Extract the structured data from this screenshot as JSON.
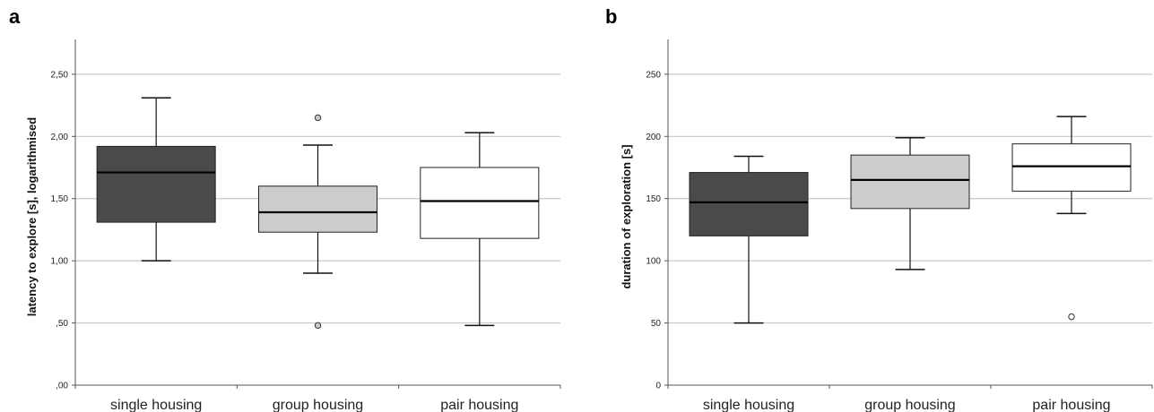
{
  "panels": {
    "a": {
      "letter": "a"
    },
    "b": {
      "letter": "b"
    }
  },
  "chart_data": [
    {
      "type": "boxplot",
      "panel": "a",
      "xlabel": "",
      "ylabel": "latency to explore [s], logarithmised",
      "ylim": [
        0,
        2.78
      ],
      "yticks": [
        0,
        0.5,
        1.0,
        1.5,
        2.0,
        2.5
      ],
      "ytick_labels": [
        ",00",
        ",50",
        "1,00",
        "1,50",
        "2,00",
        "2,50"
      ],
      "grid": true,
      "categories": [
        "single housing",
        "group housing",
        "pair housing"
      ],
      "colors": [
        "#4a4a4a",
        "#cccccc",
        "#ffffff"
      ],
      "boxes": [
        {
          "min": 1.0,
          "q1": 1.31,
          "median": 1.71,
          "q3": 1.92,
          "max": 2.31,
          "outliers": []
        },
        {
          "min": 0.9,
          "q1": 1.23,
          "median": 1.39,
          "q3": 1.6,
          "max": 1.93,
          "outliers": [
            2.15,
            0.48
          ]
        },
        {
          "min": 0.48,
          "q1": 1.18,
          "median": 1.48,
          "q3": 1.75,
          "max": 2.03,
          "outliers": []
        }
      ]
    },
    {
      "type": "boxplot",
      "panel": "b",
      "xlabel": "",
      "ylabel": "duration of exploration [s]",
      "ylim": [
        0,
        278
      ],
      "yticks": [
        0,
        50,
        100,
        150,
        200,
        250
      ],
      "ytick_labels": [
        "0",
        "50",
        "100",
        "150",
        "200",
        "250"
      ],
      "grid": true,
      "categories": [
        "single housing",
        "group housing",
        "pair housing"
      ],
      "colors": [
        "#4a4a4a",
        "#cccccc",
        "#ffffff"
      ],
      "boxes": [
        {
          "min": 50,
          "q1": 120,
          "median": 147,
          "q3": 171,
          "max": 184,
          "outliers": []
        },
        {
          "min": 93,
          "q1": 142,
          "median": 165,
          "q3": 185,
          "max": 199,
          "outliers": []
        },
        {
          "min": 138,
          "q1": 156,
          "median": 176,
          "q3": 194,
          "max": 216,
          "outliers": [
            55
          ]
        }
      ]
    }
  ]
}
